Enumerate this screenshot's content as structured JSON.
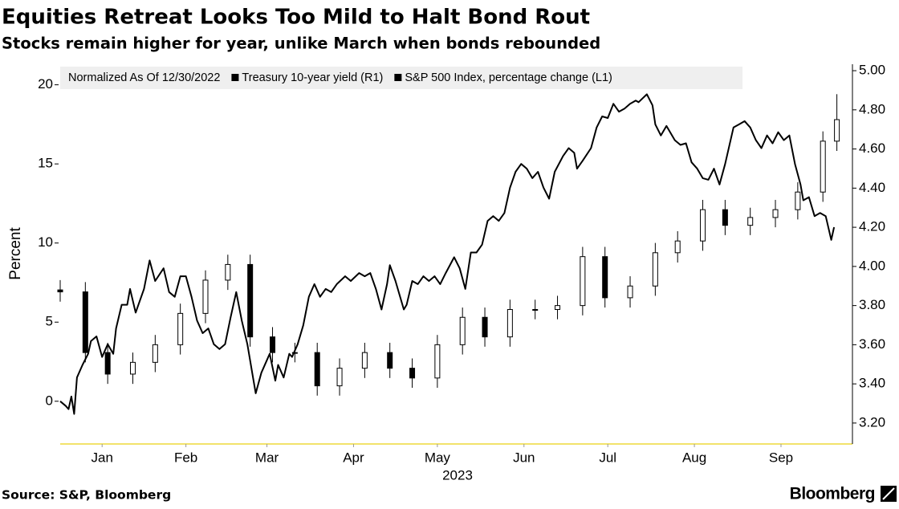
{
  "chart_data": {
    "type": "combo",
    "title": "Equities Retreat Looks Too Mild to Halt Bond Rout",
    "subtitle": "Stocks remain higher for year, unlike March when bonds rebounded",
    "legend_note": "Normalized As Of 12/30/2022",
    "y_label": "Percent",
    "x_label": "2023",
    "source": "Source: S&P, Bloomberg",
    "brand": "Bloomberg",
    "xlim": [
      0,
      283
    ],
    "xticks": [
      {
        "value": 15,
        "label": "Jan"
      },
      {
        "value": 45,
        "label": "Feb"
      },
      {
        "value": 74,
        "label": "Mar"
      },
      {
        "value": 105,
        "label": "Apr"
      },
      {
        "value": 135,
        "label": "May"
      },
      {
        "value": 166,
        "label": "Jun"
      },
      {
        "value": 196,
        "label": "Jul"
      },
      {
        "value": 227,
        "label": "Aug"
      },
      {
        "value": 258,
        "label": "Sep"
      }
    ],
    "ylim": [
      -2.7,
      21.3
    ],
    "yticks": [
      0,
      5,
      10,
      15,
      20
    ],
    "y2lim": [
      3.093,
      5.033
    ],
    "y2ticks": [
      {
        "value": 3.2,
        "label": "3.20"
      },
      {
        "value": 3.4,
        "label": "3.40"
      },
      {
        "value": 3.6,
        "label": "3.60"
      },
      {
        "value": 3.8,
        "label": "3.80"
      },
      {
        "value": 4.0,
        "label": "4.00"
      },
      {
        "value": 4.2,
        "label": "4.20"
      },
      {
        "value": 4.4,
        "label": "4.40"
      },
      {
        "value": 4.6,
        "label": "4.60"
      },
      {
        "value": 4.8,
        "label": "4.80"
      },
      {
        "value": 5.0,
        "label": "5.00"
      }
    ],
    "series": [
      {
        "name": "Treasury 10-year yield (R1)",
        "type": "candlestick",
        "axis": "y2",
        "color": "#000000",
        "x": [
          0,
          9,
          17,
          26,
          34,
          43,
          52,
          60,
          68,
          76,
          84,
          92,
          100,
          109,
          118,
          126,
          135,
          144,
          152,
          161,
          170,
          178,
          187,
          195,
          204,
          213,
          221,
          230,
          238,
          247,
          256,
          264,
          273,
          278
        ],
        "open": [
          3.88,
          3.87,
          3.56,
          3.45,
          3.51,
          3.6,
          3.76,
          3.93,
          4.01,
          3.64,
          3.56,
          3.56,
          3.39,
          3.48,
          3.56,
          3.48,
          3.43,
          3.6,
          3.74,
          3.64,
          3.78,
          3.78,
          3.8,
          4.05,
          3.84,
          3.9,
          4.07,
          4.13,
          4.29,
          4.21,
          4.25,
          4.29,
          4.38,
          4.64
        ],
        "high": [
          3.93,
          3.92,
          3.61,
          3.56,
          3.65,
          3.81,
          3.98,
          4.06,
          4.06,
          3.69,
          3.61,
          3.61,
          3.53,
          3.61,
          3.61,
          3.53,
          3.65,
          3.79,
          3.79,
          3.83,
          3.83,
          3.85,
          4.1,
          4.1,
          3.95,
          4.12,
          4.18,
          4.34,
          4.34,
          4.3,
          4.34,
          4.43,
          4.69,
          4.88
        ],
        "low": [
          3.82,
          3.51,
          3.4,
          3.4,
          3.46,
          3.55,
          3.71,
          3.88,
          3.59,
          3.51,
          3.51,
          3.34,
          3.34,
          3.43,
          3.43,
          3.38,
          3.38,
          3.55,
          3.59,
          3.59,
          3.73,
          3.73,
          3.75,
          3.79,
          3.79,
          3.85,
          4.02,
          4.08,
          4.16,
          4.16,
          4.2,
          4.24,
          4.33,
          4.59
        ],
        "close": [
          3.87,
          3.56,
          3.45,
          3.51,
          3.6,
          3.76,
          3.93,
          4.01,
          3.64,
          3.56,
          3.56,
          3.39,
          3.48,
          3.56,
          3.48,
          3.43,
          3.6,
          3.74,
          3.64,
          3.78,
          3.78,
          3.8,
          4.05,
          3.84,
          3.9,
          4.07,
          4.13,
          4.29,
          4.21,
          4.25,
          4.29,
          4.38,
          4.64,
          4.75
        ]
      },
      {
        "name": "S&P 500 Index, percentage change (L1)",
        "type": "line",
        "axis": "y",
        "color": "#000000",
        "x": [
          0,
          2,
          3,
          4,
          5,
          6,
          8,
          10,
          11,
          13,
          15,
          17,
          19,
          20,
          22,
          24,
          25,
          27,
          30,
          32,
          34,
          37,
          39,
          41,
          43,
          45,
          47,
          49,
          51,
          53,
          55,
          57,
          59,
          61,
          63,
          65,
          67,
          69,
          70,
          72,
          75,
          77,
          78,
          80,
          82,
          83,
          85,
          87,
          89,
          91,
          93,
          95,
          97,
          99,
          102,
          104,
          107,
          109,
          111,
          113,
          115,
          117,
          118,
          120,
          123,
          124,
          126,
          128,
          130,
          132,
          134,
          136,
          138,
          141,
          143,
          145,
          147,
          149,
          151,
          153,
          155,
          157,
          159,
          161,
          163,
          165,
          167,
          169,
          171,
          173,
          175,
          177,
          180,
          182,
          184,
          185,
          187,
          190,
          192,
          194,
          196,
          198,
          200,
          202,
          204,
          206,
          207,
          210,
          212,
          213,
          215,
          217,
          220,
          222,
          224,
          226,
          228,
          230,
          232,
          234,
          236,
          238,
          241,
          243,
          245,
          247,
          249,
          251,
          253,
          255,
          257,
          259,
          261,
          263,
          265,
          266,
          268,
          270,
          272,
          274,
          276,
          277
        ],
        "values": [
          0,
          -0.3,
          -0.5,
          0.3,
          -0.8,
          1.5,
          2.3,
          3.0,
          3.8,
          4.1,
          2.8,
          3.6,
          3.0,
          4.6,
          6.1,
          6.1,
          7.1,
          5.6,
          7.1,
          8.9,
          7.6,
          8.4,
          6.9,
          6.6,
          7.9,
          7.9,
          6.6,
          5.1,
          4.3,
          4.6,
          3.6,
          3.3,
          3.6,
          5.3,
          6.9,
          5.1,
          3.6,
          1.5,
          0.5,
          1.8,
          3.0,
          1.3,
          2.3,
          1.5,
          3.0,
          2.8,
          3.6,
          4.8,
          6.6,
          7.4,
          6.6,
          7.1,
          6.9,
          7.4,
          7.9,
          7.6,
          8.1,
          7.9,
          8.1,
          7.1,
          5.8,
          7.4,
          8.6,
          7.6,
          5.8,
          6.1,
          7.6,
          7.4,
          7.9,
          7.6,
          7.9,
          7.4,
          8.1,
          9.1,
          8.4,
          7.1,
          9.4,
          9.4,
          9.9,
          11.4,
          11.7,
          11.4,
          11.9,
          13.5,
          14.5,
          15.0,
          14.7,
          14.1,
          14.5,
          13.5,
          12.8,
          14.5,
          15.5,
          16.0,
          15.7,
          14.7,
          15.2,
          16.0,
          17.3,
          18.0,
          17.9,
          18.8,
          18.3,
          18.5,
          18.8,
          19.0,
          18.9,
          19.4,
          18.7,
          17.5,
          16.8,
          17.4,
          16.5,
          16.2,
          16.3,
          15.1,
          14.7,
          14.1,
          14.0,
          14.7,
          13.7,
          15.0,
          17.3,
          17.5,
          17.7,
          17.3,
          16.5,
          16.0,
          16.8,
          16.3,
          17.0,
          16.5,
          16.8,
          15.0,
          13.7,
          12.7,
          12.9,
          11.7,
          11.9,
          11.7,
          10.2,
          11.0
        ]
      }
    ]
  }
}
